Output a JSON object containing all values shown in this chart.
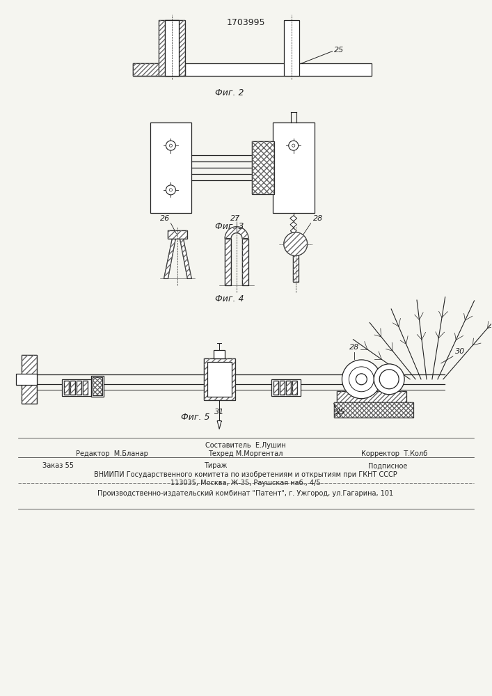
{
  "bg_color": "#f5f5f0",
  "title_text": "1703995",
  "fig2_label": "Фиг. 2",
  "fig3_label": "Фиг. 3",
  "fig4_label": "Фиг. 4",
  "fig5_label": "Фиг. 5",
  "editor_line": "Редактор  М.Бланар",
  "composer_line": "Составитель  Е.Лушин",
  "corrector_line": "Корректор  Т.Колб",
  "techred_line": "Техред М.Моргентал",
  "order_line": "Заказ 55",
  "tirazh_line": "Тираж",
  "podpisnoe_line": "Подписное",
  "vniiipi_line": "ВНИИПИ Государственного комитета по изобретениям и открытиям при ГКНТ СССР",
  "address_line": "113035, Москва, Ж-35, Раушская наб., 4/5",
  "factory_line": "Производственно-издательский комбинат \"Патент\", г. Ужгород, ул.Гагарина, 101",
  "lc": "#222222",
  "hc": "#666666"
}
